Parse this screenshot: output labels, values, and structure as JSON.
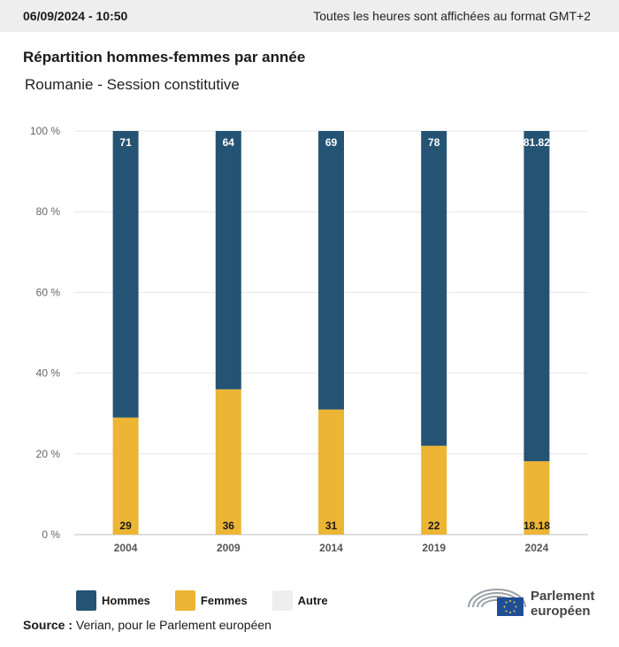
{
  "header": {
    "date": "06/09/2024 - 10:50",
    "timezone_note": "Toutes les heures sont affichées au format GMT+2"
  },
  "title": "Répartition hommes-femmes par année",
  "subtitle": "Roumanie - Session constitutive",
  "chart_data": {
    "type": "bar",
    "stacked": true,
    "categories": [
      "2004",
      "2009",
      "2014",
      "2019",
      "2024"
    ],
    "series": [
      {
        "name": "Hommes",
        "values": [
          71,
          64,
          69,
          78,
          81.82
        ],
        "color": "#255374",
        "labels": [
          "71",
          "64",
          "69",
          "78",
          "81.82"
        ]
      },
      {
        "name": "Femmes",
        "values": [
          29,
          36,
          31,
          22,
          18.18
        ],
        "color": "#ecb534",
        "labels": [
          "29",
          "36",
          "31",
          "22",
          "18.18"
        ]
      },
      {
        "name": "Autre",
        "values": [
          0,
          0,
          0,
          0,
          0
        ],
        "color": "#eeeeee"
      }
    ],
    "ylim": [
      0,
      100
    ],
    "yticks": [
      0,
      20,
      40,
      60,
      80,
      100
    ],
    "ytick_labels": [
      "0 %",
      "20 %",
      "40 %",
      "60 %",
      "80 %",
      "100 %"
    ],
    "grid": true,
    "legend_position": "bottom-left"
  },
  "source": {
    "label": "Source :",
    "text": "Verian, pour le Parlement européen"
  },
  "logo": {
    "line1": "Parlement",
    "line2": "européen",
    "icon": "european-parliament-hemicycle-icon"
  }
}
